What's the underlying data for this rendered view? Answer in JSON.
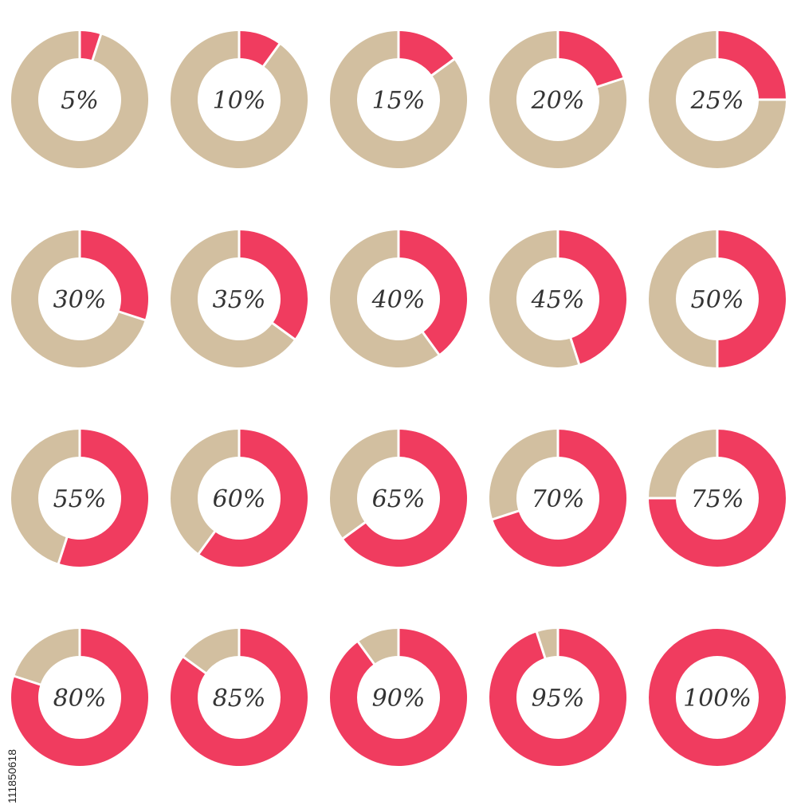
{
  "colors": {
    "filled": "#f03c5f",
    "remaining": "#d2bfa0",
    "separator": "#ffffff",
    "label": "#333333"
  },
  "chart_data": {
    "type": "donut",
    "percents": [
      5,
      10,
      15,
      20,
      25,
      30,
      35,
      40,
      45,
      50,
      55,
      60,
      65,
      70,
      75,
      80,
      85,
      90,
      95,
      100
    ],
    "labels": [
      "5%",
      "10%",
      "15%",
      "20%",
      "25%",
      "30%",
      "35%",
      "40%",
      "45%",
      "50%",
      "55%",
      "60%",
      "65%",
      "70%",
      "75%",
      "80%",
      "85%",
      "90%",
      "95%",
      "100%"
    ],
    "title": "",
    "grid": false,
    "legend": "none"
  },
  "stock_id": "111850618"
}
